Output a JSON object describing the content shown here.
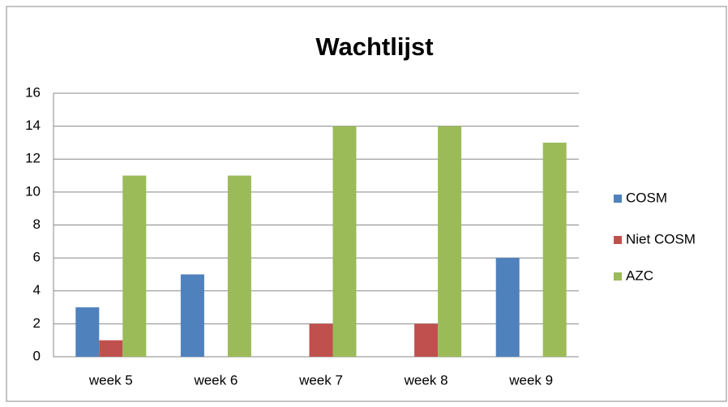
{
  "chart_data": {
    "type": "bar",
    "title": "Wachtlijst",
    "categories": [
      "week 5",
      "week 6",
      "week 7",
      "week 8",
      "week 9"
    ],
    "series": [
      {
        "name": "COSM",
        "color": "#4f81bd",
        "values": [
          3,
          5,
          0,
          0,
          6
        ]
      },
      {
        "name": "Niet COSM",
        "color": "#c0504d",
        "values": [
          1,
          0,
          2,
          2,
          0
        ]
      },
      {
        "name": "AZC",
        "color": "#9bbb59",
        "values": [
          11,
          11,
          14,
          14,
          13
        ]
      }
    ],
    "ylim": [
      0,
      16
    ],
    "yticks": [
      0,
      2,
      4,
      6,
      8,
      10,
      12,
      14,
      16
    ],
    "grid": true,
    "legend": "right"
  }
}
